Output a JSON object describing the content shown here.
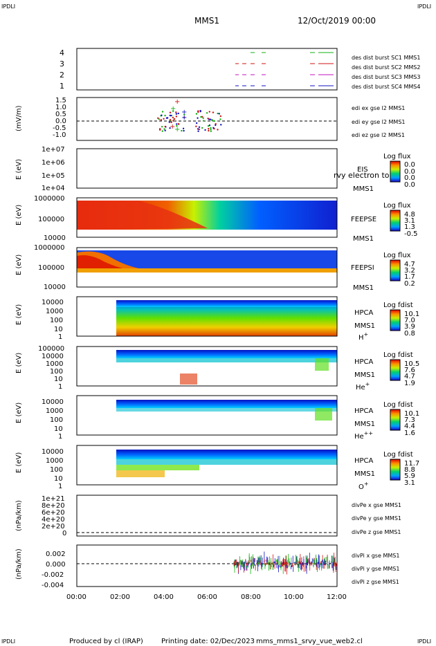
{
  "header": {
    "corner_tl": "IPDLI",
    "corner_tr": "IPDLI",
    "title": "MMS1",
    "date": "12/Oct/2019 00:00"
  },
  "footer": {
    "corner_bl": "IPDLI",
    "corner_br": "IPDLI",
    "produced_by": "Produced by cl (IRAP)",
    "printing_date": "Printing date: 02/Dec/2023",
    "script": "mms_mms1_srvy_vue_web2.cl"
  },
  "chart_data": [
    {
      "type": "line",
      "panel": "burst-availability",
      "y_ticks": [
        "1",
        "2",
        "3",
        "4"
      ],
      "ylim": [
        0.5,
        4.5
      ],
      "legend": [
        {
          "label": "des dist burst SC1 MMS1",
          "color": "#1010c0"
        },
        {
          "label": "des dist burst SC2 MMS2",
          "color": "#c010c0"
        },
        {
          "label": "des dist burst SC3 MMS3",
          "color": "#d01010"
        },
        {
          "label": "des dist burst SC4 MMS4",
          "color": "#10b010"
        }
      ]
    },
    {
      "type": "line",
      "panel": "edi-electric-field",
      "ylabel": "(mV/m)",
      "y_ticks": [
        "1.5",
        "1.0",
        "0.5",
        "0.0",
        "-0.5",
        "-1.0"
      ],
      "ylim": [
        -1.3,
        1.6
      ],
      "legend": [
        {
          "label": "edi ex gse l2 MMS1",
          "color": "#d01010"
        },
        {
          "label": "edi ey gse l2 MMS1",
          "color": "#10b010"
        },
        {
          "label": "edi ez gse l2 MMS1",
          "color": "#1010c0"
        }
      ]
    },
    {
      "type": "heatmap",
      "panel": "eis",
      "ylabel": "E (eV)",
      "y_ticks": [
        "1e+07",
        "1e+06",
        "1e+05",
        "1e+04"
      ],
      "label": "EIS",
      "label2": "MMS1",
      "overlay": "rvy electron to",
      "cbar_title": "Log flux",
      "cbar_ticks": [
        "0.0",
        "0.0",
        "0.0",
        "0.0"
      ]
    },
    {
      "type": "heatmap",
      "panel": "feepse",
      "ylabel": "E (eV)",
      "y_ticks": [
        "1000000",
        "100000",
        "10000"
      ],
      "label": "FEEPSE",
      "label2": "MMS1",
      "cbar_title": "Log flux",
      "cbar_ticks": [
        "4.8",
        "3.1",
        "1.3",
        "-0.5"
      ]
    },
    {
      "type": "heatmap",
      "panel": "feepsi",
      "ylabel": "E (eV)",
      "y_ticks": [
        "1000000",
        "100000",
        "10000"
      ],
      "label": "FEEPSI",
      "label2": "MMS1",
      "cbar_title": "Log flux",
      "cbar_ticks": [
        "4.7",
        "3.2",
        "1.7",
        "0.2"
      ]
    },
    {
      "type": "heatmap",
      "panel": "hpca-h",
      "ylabel": "E (eV)",
      "y_ticks": [
        "10000",
        "1000",
        "100",
        "10",
        "1"
      ],
      "label": "HPCA",
      "label2": "MMS1",
      "species": "H",
      "charge": "+",
      "cbar_title": "Log fdist",
      "cbar_ticks": [
        "10.1",
        "7.0",
        "3.9",
        "0.8"
      ]
    },
    {
      "type": "heatmap",
      "panel": "hpca-he",
      "ylabel": "E (eV)",
      "y_ticks": [
        "100000",
        "10000",
        "1000",
        "100",
        "10",
        "1"
      ],
      "label": "HPCA",
      "label2": "MMS1",
      "species": "He",
      "charge": "+",
      "cbar_title": "Log fdist",
      "cbar_ticks": [
        "10.5",
        "7.6",
        "4.7",
        "1.9"
      ]
    },
    {
      "type": "heatmap",
      "panel": "hpca-he2",
      "ylabel": "E (eV)",
      "y_ticks": [
        "10000",
        "1000",
        "100",
        "10",
        "1"
      ],
      "label": "HPCA",
      "label2": "MMS1",
      "species": "He",
      "charge": "++",
      "cbar_title": "Log fdist",
      "cbar_ticks": [
        "10.1",
        "7.3",
        "4.4",
        "1.6"
      ]
    },
    {
      "type": "heatmap",
      "panel": "hpca-o",
      "ylabel": "E (eV)",
      "y_ticks": [
        "10000",
        "1000",
        "100",
        "10",
        "1"
      ],
      "label": "HPCA",
      "label2": "MMS1",
      "species": "O",
      "charge": "+",
      "cbar_title": "Log fdist",
      "cbar_ticks": [
        "11.7",
        "8.8",
        "5.9",
        "3.1"
      ]
    },
    {
      "type": "line",
      "panel": "divpe",
      "ylabel": "(nPa/km)",
      "y_ticks": [
        "1e+21",
        "8e+20",
        "6e+20",
        "4e+20",
        "2e+20",
        "0"
      ],
      "legend": [
        {
          "label": "divPe x gse MMS1",
          "color": "#d01010"
        },
        {
          "label": "divPe y gse MMS1",
          "color": "#10b010"
        },
        {
          "label": "divPe z gse MMS1",
          "color": "#1010c0"
        }
      ]
    },
    {
      "type": "line",
      "panel": "divpi",
      "ylabel": "(nPa/km)",
      "y_ticks": [
        "0.002",
        "0.000",
        "-0.002",
        "-0.004"
      ],
      "ylim": [
        -0.0045,
        0.0033
      ],
      "legend": [
        {
          "label": "divPi x gse MMS1",
          "color": "#d01010"
        },
        {
          "label": "divPi y gse MMS1",
          "color": "#10b010"
        },
        {
          "label": "divPi z gse MMS1",
          "color": "#1010c0"
        }
      ],
      "x_ticks": [
        "00:00",
        "02:00",
        "04:00",
        "06:00",
        "08:00",
        "10:00",
        "12:00"
      ]
    }
  ]
}
